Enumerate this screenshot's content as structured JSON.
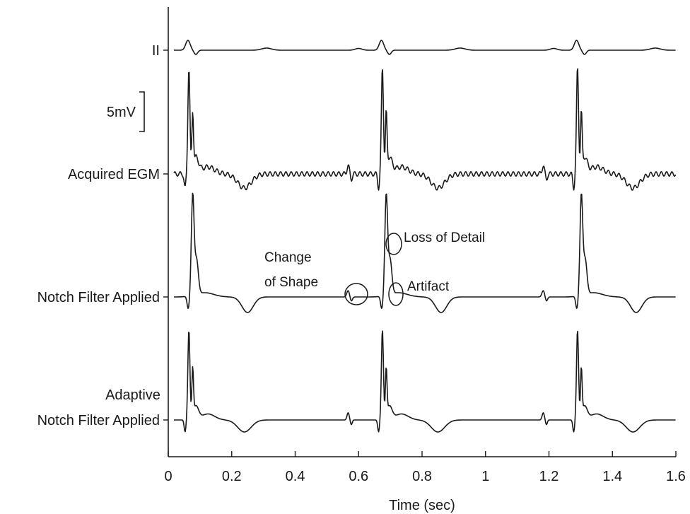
{
  "chart_data": {
    "type": "line",
    "title": "",
    "xlabel": "Time (sec)",
    "ylabel": "",
    "xlim": [
      0,
      1.6
    ],
    "x_ticks": [
      "0",
      "0.2",
      "0.4",
      "0.6",
      "0.8",
      "1",
      "1.2",
      "1.4",
      "1.6"
    ],
    "scale_bar": "5mV",
    "beat_times": [
      0.065,
      0.675,
      1.29
    ],
    "grid": false,
    "series": [
      {
        "name": "II"
      },
      {
        "name": "Acquired EGM"
      },
      {
        "name": "Notch Filter Applied"
      },
      {
        "name_line1": "Adaptive",
        "name_line2": "Notch Filter Applied"
      }
    ],
    "annotations": {
      "change_of_shape_line1": "Change",
      "change_of_shape_line2": "of Shape",
      "loss_of_detail": "Loss of Detail",
      "artifact": "Artifact"
    }
  }
}
